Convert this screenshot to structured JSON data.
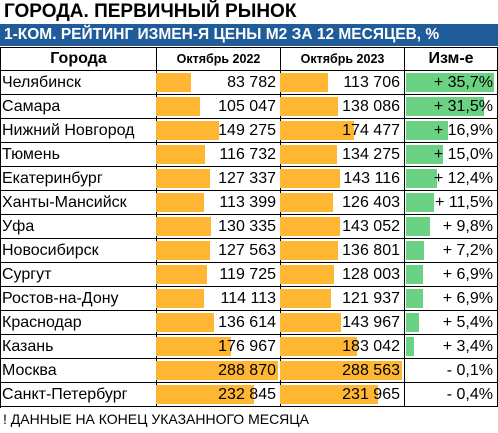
{
  "title": "ГОРОДА. ПЕРВИЧНЫЙ РЫНОК",
  "subtitle": "1-КОМ. РЕЙТИНГ ИЗМЕН-Я ЦЕНЫ М2 ЗА 12 МЕСЯЦЕВ, %",
  "footnote": "! ДАННЫЕ НА КОНЕЦ УКАЗАННОГО МЕСЯЦА",
  "colors": {
    "bar": "#ffb733",
    "change_bar": "#6cd283",
    "subtitle_bg": "#1f5c99"
  },
  "chart_data": {
    "type": "table",
    "columns": [
      "Города",
      "Октябрь 2022",
      "Октябрь 2023",
      "Изм-е"
    ],
    "rows": [
      {
        "city": "Челябинск",
        "oct2022": 83782,
        "oct2022_text": "83 782",
        "oct2023": 113706,
        "oct2023_text": "113 706",
        "change": 35.7,
        "change_text": "+ 35,7%"
      },
      {
        "city": "Самара",
        "oct2022": 105047,
        "oct2022_text": "105 047",
        "oct2023": 138086,
        "oct2023_text": "138 086",
        "change": 31.5,
        "change_text": "+ 31,5%"
      },
      {
        "city": "Нижний Новгород",
        "oct2022": 149275,
        "oct2022_text": "149 275",
        "oct2023": 174477,
        "oct2023_text": "174 477",
        "change": 16.9,
        "change_text": "+ 16,9%"
      },
      {
        "city": "Тюмень",
        "oct2022": 116732,
        "oct2022_text": "116 732",
        "oct2023": 134275,
        "oct2023_text": "134 275",
        "change": 15.0,
        "change_text": "+ 15,0%"
      },
      {
        "city": "Екатеринбург",
        "oct2022": 127337,
        "oct2022_text": "127 337",
        "oct2023": 143116,
        "oct2023_text": "143 116",
        "change": 12.4,
        "change_text": "+ 12,4%"
      },
      {
        "city": "Ханты-Мансийск",
        "oct2022": 113399,
        "oct2022_text": "113 399",
        "oct2023": 126403,
        "oct2023_text": "126 403",
        "change": 11.5,
        "change_text": "+ 11,5%"
      },
      {
        "city": "Уфа",
        "oct2022": 130335,
        "oct2022_text": "130 335",
        "oct2023": 143052,
        "oct2023_text": "143 052",
        "change": 9.8,
        "change_text": "+ 9,8%"
      },
      {
        "city": "Новосибирск",
        "oct2022": 127563,
        "oct2022_text": "127 563",
        "oct2023": 136801,
        "oct2023_text": "136 801",
        "change": 7.2,
        "change_text": "+ 7,2%"
      },
      {
        "city": "Сургут",
        "oct2022": 119725,
        "oct2022_text": "119 725",
        "oct2023": 128003,
        "oct2023_text": "128 003",
        "change": 6.9,
        "change_text": "+ 6,9%"
      },
      {
        "city": "Ростов-на-Дону",
        "oct2022": 114113,
        "oct2022_text": "114 113",
        "oct2023": 121937,
        "oct2023_text": "121 937",
        "change": 6.9,
        "change_text": "+ 6,9%"
      },
      {
        "city": "Краснодар",
        "oct2022": 136614,
        "oct2022_text": "136 614",
        "oct2023": 143967,
        "oct2023_text": "143 967",
        "change": 5.4,
        "change_text": "+ 5,4%"
      },
      {
        "city": "Казань",
        "oct2022": 176967,
        "oct2022_text": "176 967",
        "oct2023": 183042,
        "oct2023_text": "183 042",
        "change": 3.4,
        "change_text": "+ 3,4%"
      },
      {
        "city": "Москва",
        "oct2022": 288870,
        "oct2022_text": "288 870",
        "oct2023": 288563,
        "oct2023_text": "288 563",
        "change": -0.1,
        "change_text": "- 0,1%"
      },
      {
        "city": "Санкт-Петербург",
        "oct2022": 232845,
        "oct2022_text": "232 845",
        "oct2023": 231965,
        "oct2023_text": "231 965",
        "change": -0.4,
        "change_text": "- 0,4%"
      }
    ],
    "bar_scale_max": 288870,
    "change_scale_max": 35.7
  }
}
